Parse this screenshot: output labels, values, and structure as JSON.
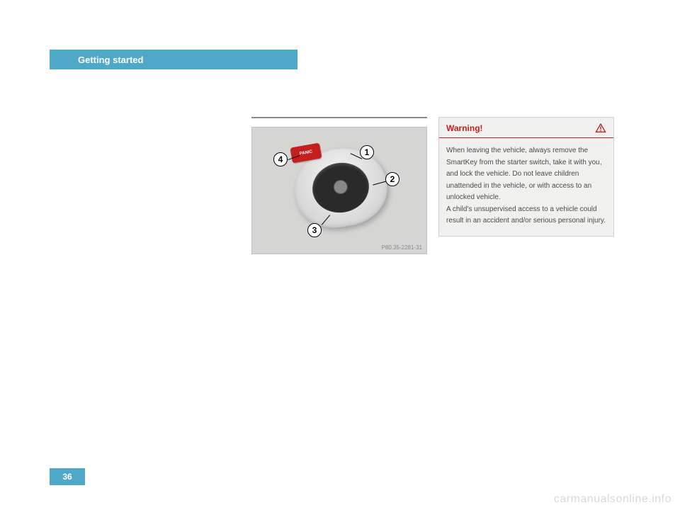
{
  "header": {
    "title": "Getting started",
    "bar_color": "#4fa8c7",
    "text_color": "#ffffff"
  },
  "key_image": {
    "code": "P80.35-2281-31",
    "panic_label": "PANIC",
    "callouts": {
      "c1": "1",
      "c2": "2",
      "c3": "3",
      "c4": "4"
    },
    "background": "#d5d6d4",
    "panic_color": "#c41e1e"
  },
  "warning": {
    "title": "Warning!",
    "title_color": "#c41e1e",
    "rule_color": "#c41e1e",
    "box_bg": "#f0f0ee",
    "body": "When leaving the vehicle, always remove the SmartKey from the starter switch, take it with you, and lock the vehicle. Do not leave children unattended in the vehicle, or with access to an unlocked vehicle.\nA child's unsupervised access to a vehicle could result in an accident and/or serious personal injury."
  },
  "page_number": "36",
  "watermark": "carmanualsonline.info"
}
